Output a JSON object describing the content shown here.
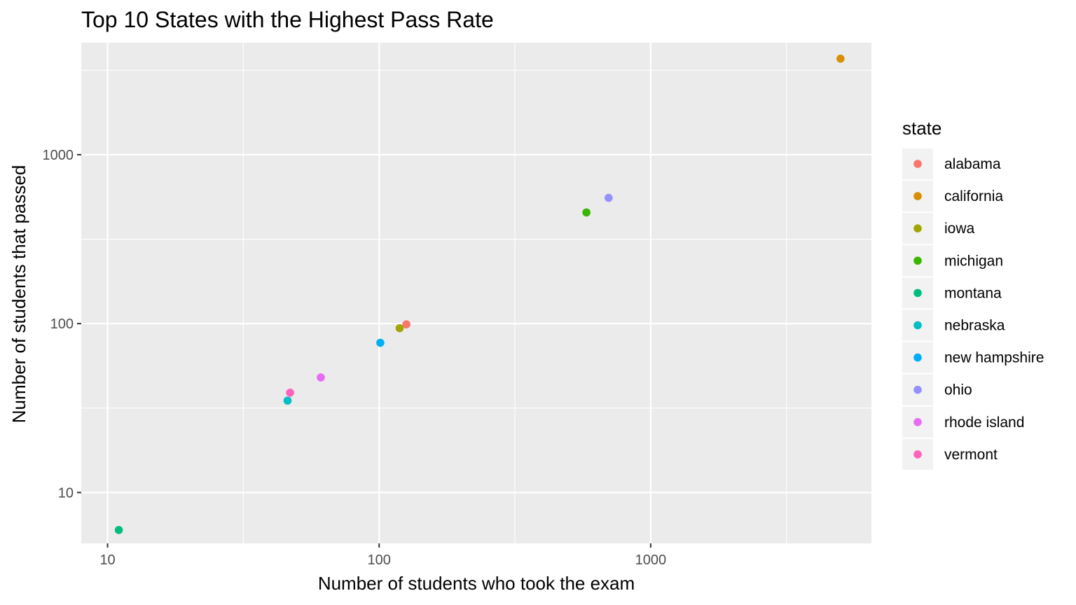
{
  "chart_data": {
    "type": "scatter",
    "title": "Top 10 States with the Highest Pass Rate",
    "xlabel": "Number of students who took the exam",
    "ylabel": "Number of students that passed",
    "x_scale": "log10",
    "y_scale": "log10",
    "xlim": [
      8,
      6500
    ],
    "ylim": [
      5,
      4600
    ],
    "x_ticks": [
      {
        "value": 10,
        "label": "10"
      },
      {
        "value": 100,
        "label": "100"
      },
      {
        "value": 1000,
        "label": "1000"
      }
    ],
    "y_ticks": [
      {
        "value": 10,
        "label": "10"
      },
      {
        "value": 100,
        "label": "100"
      },
      {
        "value": 1000,
        "label": "1000"
      }
    ],
    "x_minor_gridlines": [
      31.6,
      316,
      3160
    ],
    "y_minor_gridlines": [
      31.6,
      316,
      3160
    ],
    "grid": true,
    "legend": {
      "title": "state",
      "position": "right"
    },
    "series": [
      {
        "name": "alabama",
        "color": "#F8766D",
        "x": 126,
        "y": 99
      },
      {
        "name": "california",
        "color": "#D89000",
        "x": 5000,
        "y": 3700
      },
      {
        "name": "iowa",
        "color": "#A3A500",
        "x": 119,
        "y": 94
      },
      {
        "name": "michigan",
        "color": "#39B600",
        "x": 580,
        "y": 455
      },
      {
        "name": "montana",
        "color": "#00BF7D",
        "x": 11,
        "y": 6
      },
      {
        "name": "nebraska",
        "color": "#00BFC4",
        "x": 46,
        "y": 35
      },
      {
        "name": "new hampshire",
        "color": "#00B0F6",
        "x": 101,
        "y": 77
      },
      {
        "name": "ohio",
        "color": "#9590FF",
        "x": 700,
        "y": 555
      },
      {
        "name": "rhode island",
        "color": "#E76BF3",
        "x": 61,
        "y": 48
      },
      {
        "name": "vermont",
        "color": "#FF62BC",
        "x": 47,
        "y": 39
      }
    ]
  }
}
